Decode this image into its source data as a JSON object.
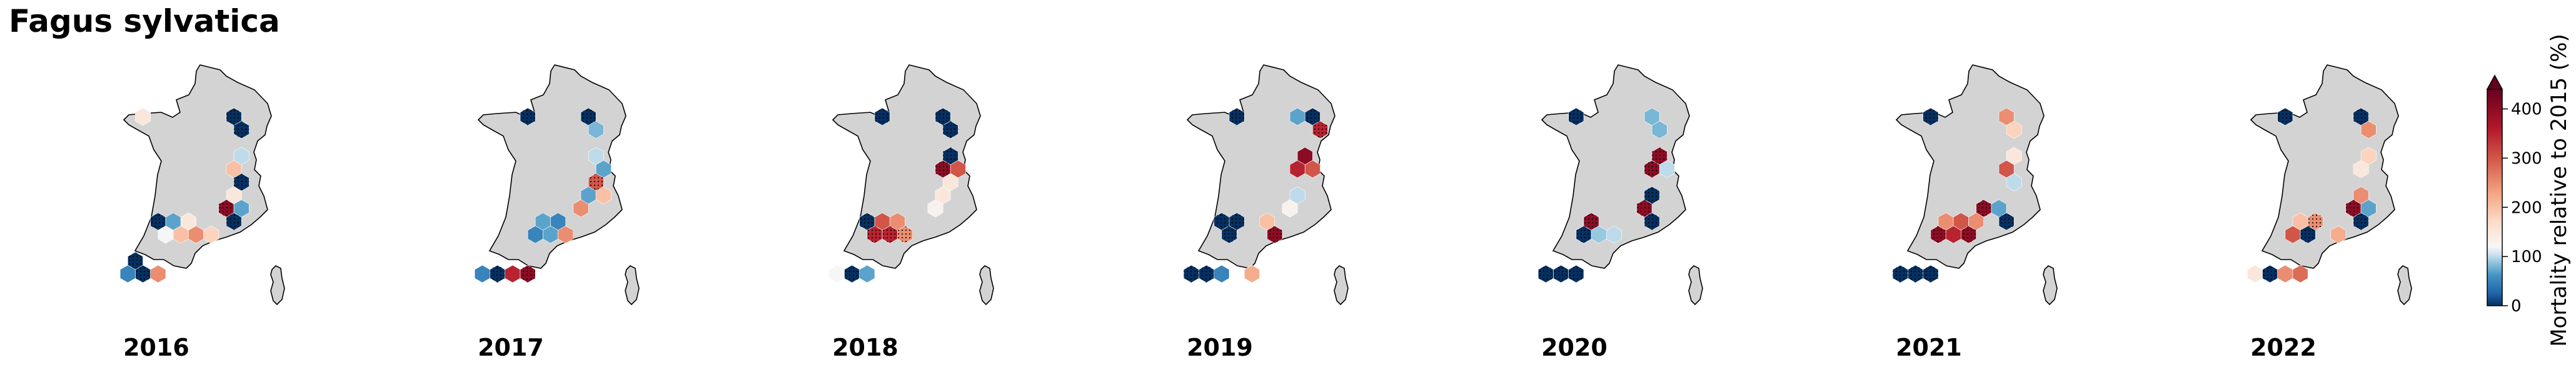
{
  "title": "Fagus sylvatica",
  "chart_data": {
    "type": "heatmap",
    "description_type": "hexbin small multiples",
    "panels": [
      {
        "year": "2016",
        "cells": [
          {
            "c": 2,
            "r": 1,
            "v": 150
          },
          {
            "c": 8,
            "r": 1,
            "v": 0,
            "sig": true
          },
          {
            "c": 9,
            "r": 2,
            "v": 0,
            "sig": true
          },
          {
            "c": 9,
            "r": 4,
            "v": 100
          },
          {
            "c": 8,
            "r": 5,
            "v": 200
          },
          {
            "c": 9,
            "r": 6,
            "v": 0,
            "sig": true
          },
          {
            "c": 8,
            "r": 7,
            "v": 150
          },
          {
            "c": 8,
            "r": 8,
            "v": 400,
            "sig": true
          },
          {
            "c": 9,
            "r": 8,
            "v": 70
          },
          {
            "c": 8,
            "r": 9,
            "v": 0,
            "sig": true
          },
          {
            "c": 3,
            "r": 9,
            "v": 0,
            "sig": true
          },
          {
            "c": 4,
            "r": 9,
            "v": 70
          },
          {
            "c": 5,
            "r": 9,
            "v": 150
          },
          {
            "c": 5,
            "r": 10,
            "v": 200
          },
          {
            "c": 6,
            "r": 10,
            "v": 250
          },
          {
            "c": 7,
            "r": 10,
            "v": 180
          },
          {
            "c": 4,
            "r": 10,
            "v": 120
          },
          {
            "c": 2,
            "r": 12,
            "v": 0,
            "sig": true
          },
          {
            "c": 1,
            "r": 13,
            "v": 50
          },
          {
            "c": 2,
            "r": 13,
            "v": 0,
            "sig": true
          },
          {
            "c": 3,
            "r": 13,
            "v": 250
          }
        ]
      },
      {
        "year": "2017",
        "cells": [
          {
            "c": 4,
            "r": 1,
            "v": 0,
            "sig": true
          },
          {
            "c": 8,
            "r": 1,
            "v": 0,
            "sig": true
          },
          {
            "c": 9,
            "r": 2,
            "v": 80
          },
          {
            "c": 9,
            "r": 4,
            "v": 100
          },
          {
            "c": 9,
            "r": 5,
            "v": 70
          },
          {
            "c": 9,
            "r": 6,
            "v": 300,
            "sig": true
          },
          {
            "c": 8,
            "r": 7,
            "v": 70
          },
          {
            "c": 9,
            "r": 7,
            "v": 200
          },
          {
            "c": 8,
            "r": 8,
            "v": 250
          },
          {
            "c": 5,
            "r": 9,
            "v": 70
          },
          {
            "c": 6,
            "r": 9,
            "v": 50
          },
          {
            "c": 5,
            "r": 10,
            "v": 50
          },
          {
            "c": 6,
            "r": 10,
            "v": 70
          },
          {
            "c": 7,
            "r": 10,
            "v": 250
          },
          {
            "c": 1,
            "r": 13,
            "v": 50
          },
          {
            "c": 2,
            "r": 13,
            "v": 0,
            "sig": true
          },
          {
            "c": 3,
            "r": 13,
            "v": 350
          },
          {
            "c": 4,
            "r": 13,
            "v": 400,
            "sig": true
          }
        ]
      },
      {
        "year": "2018",
        "cells": [
          {
            "c": 4,
            "r": 1,
            "v": 0,
            "sig": true
          },
          {
            "c": 8,
            "r": 1,
            "v": 0,
            "sig": true
          },
          {
            "c": 9,
            "r": 2,
            "v": 0,
            "sig": true
          },
          {
            "c": 9,
            "r": 4,
            "v": 0,
            "sig": true
          },
          {
            "c": 8,
            "r": 5,
            "v": 400,
            "sig": true
          },
          {
            "c": 9,
            "r": 5,
            "v": 300
          },
          {
            "c": 9,
            "r": 6,
            "v": 150
          },
          {
            "c": 8,
            "r": 7,
            "v": 150
          },
          {
            "c": 8,
            "r": 8,
            "v": 130
          },
          {
            "c": 3,
            "r": 9,
            "v": 0,
            "sig": true
          },
          {
            "c": 4,
            "r": 9,
            "v": 300
          },
          {
            "c": 5,
            "r": 9,
            "v": 250
          },
          {
            "c": 4,
            "r": 10,
            "v": 350,
            "sig": true
          },
          {
            "c": 5,
            "r": 10,
            "v": 350,
            "sig": true
          },
          {
            "c": 6,
            "r": 10,
            "v": 250,
            "sig": true
          },
          {
            "c": 1,
            "r": 13,
            "v": 120
          },
          {
            "c": 2,
            "r": 13,
            "v": 0,
            "sig": true
          },
          {
            "c": 3,
            "r": 13,
            "v": 70
          }
        ]
      },
      {
        "year": "2019",
        "cells": [
          {
            "c": 4,
            "r": 1,
            "v": 0,
            "sig": true
          },
          {
            "c": 8,
            "r": 1,
            "v": 70
          },
          {
            "c": 9,
            "r": 1,
            "v": 0,
            "sig": true
          },
          {
            "c": 10,
            "r": 2,
            "v": 350,
            "sig": true
          },
          {
            "c": 9,
            "r": 4,
            "v": 400
          },
          {
            "c": 8,
            "r": 5,
            "v": 350
          },
          {
            "c": 9,
            "r": 5,
            "v": 300
          },
          {
            "c": 8,
            "r": 7,
            "v": 100
          },
          {
            "c": 8,
            "r": 8,
            "v": 130
          },
          {
            "c": 3,
            "r": 9,
            "v": 0,
            "sig": true
          },
          {
            "c": 4,
            "r": 9,
            "v": 0,
            "sig": true
          },
          {
            "c": 6,
            "r": 9,
            "v": 200
          },
          {
            "c": 4,
            "r": 10,
            "v": 0,
            "sig": true
          },
          {
            "c": 7,
            "r": 10,
            "v": 400,
            "sig": true
          },
          {
            "c": 1,
            "r": 13,
            "v": 0,
            "sig": true
          },
          {
            "c": 2,
            "r": 13,
            "v": 0,
            "sig": true
          },
          {
            "c": 3,
            "r": 13,
            "v": 50
          },
          {
            "c": 5,
            "r": 13,
            "v": 220
          }
        ]
      },
      {
        "year": "2020",
        "cells": [
          {
            "c": 3,
            "r": 1,
            "v": 0,
            "sig": true
          },
          {
            "c": 8,
            "r": 1,
            "v": 80
          },
          {
            "c": 9,
            "r": 2,
            "v": 80
          },
          {
            "c": 9,
            "r": 4,
            "v": 400,
            "sig": true
          },
          {
            "c": 8,
            "r": 5,
            "v": 400,
            "sig": true
          },
          {
            "c": 9,
            "r": 5,
            "v": 100
          },
          {
            "c": 8,
            "r": 7,
            "v": 0,
            "sig": true
          },
          {
            "c": 8,
            "r": 8,
            "v": 400,
            "sig": true
          },
          {
            "c": 8,
            "r": 9,
            "v": 0,
            "sig": true
          },
          {
            "c": 4,
            "r": 9,
            "v": 400,
            "sig": true
          },
          {
            "c": 4,
            "r": 10,
            "v": 0,
            "sig": true
          },
          {
            "c": 5,
            "r": 10,
            "v": 90
          },
          {
            "c": 6,
            "r": 10,
            "v": 100
          },
          {
            "c": 1,
            "r": 13,
            "v": 0,
            "sig": true
          },
          {
            "c": 2,
            "r": 13,
            "v": 0,
            "sig": true
          },
          {
            "c": 3,
            "r": 13,
            "v": 0,
            "sig": true
          }
        ]
      },
      {
        "year": "2021",
        "cells": [
          {
            "c": 3,
            "r": 1,
            "v": 0,
            "sig": true
          },
          {
            "c": 8,
            "r": 1,
            "v": 250
          },
          {
            "c": 9,
            "r": 2,
            "v": 180
          },
          {
            "c": 9,
            "r": 4,
            "v": 150
          },
          {
            "c": 8,
            "r": 5,
            "v": 300
          },
          {
            "c": 9,
            "r": 6,
            "v": 100
          },
          {
            "c": 7,
            "r": 8,
            "v": 400,
            "sig": true
          },
          {
            "c": 8,
            "r": 8,
            "v": 70
          },
          {
            "c": 8,
            "r": 9,
            "v": 0,
            "sig": true
          },
          {
            "c": 4,
            "r": 9,
            "v": 250
          },
          {
            "c": 5,
            "r": 9,
            "v": 300
          },
          {
            "c": 6,
            "r": 9,
            "v": 250
          },
          {
            "c": 4,
            "r": 10,
            "v": 400,
            "sig": true
          },
          {
            "c": 5,
            "r": 10,
            "v": 350
          },
          {
            "c": 6,
            "r": 10,
            "v": 400,
            "sig": true
          },
          {
            "c": 1,
            "r": 13,
            "v": 0,
            "sig": true
          },
          {
            "c": 2,
            "r": 13,
            "v": 0,
            "sig": true
          },
          {
            "c": 3,
            "r": 13,
            "v": 0,
            "sig": true
          }
        ]
      },
      {
        "year": "2022",
        "cells": [
          {
            "c": 3,
            "r": 1,
            "v": 0,
            "sig": true
          },
          {
            "c": 8,
            "r": 1,
            "v": 0,
            "sig": true
          },
          {
            "c": 9,
            "r": 2,
            "v": 250
          },
          {
            "c": 9,
            "r": 4,
            "v": 180
          },
          {
            "c": 8,
            "r": 5,
            "v": 150
          },
          {
            "c": 8,
            "r": 7,
            "v": 250
          },
          {
            "c": 8,
            "r": 8,
            "v": 400,
            "sig": true
          },
          {
            "c": 9,
            "r": 8,
            "v": 70
          },
          {
            "c": 8,
            "r": 9,
            "v": 0,
            "sig": true
          },
          {
            "c": 4,
            "r": 9,
            "v": 200
          },
          {
            "c": 5,
            "r": 9,
            "v": 250,
            "sig": true
          },
          {
            "c": 4,
            "r": 10,
            "v": 300
          },
          {
            "c": 5,
            "r": 10,
            "v": 0,
            "sig": true
          },
          {
            "c": 7,
            "r": 10,
            "v": 220
          },
          {
            "c": 1,
            "r": 13,
            "v": 150
          },
          {
            "c": 2,
            "r": 13,
            "v": 0,
            "sig": true
          },
          {
            "c": 3,
            "r": 13,
            "v": 250
          },
          {
            "c": 4,
            "r": 13,
            "v": 280
          }
        ]
      }
    ],
    "colorbar": {
      "label": "Mortality relative to 2015 (%)",
      "ticks": [
        0,
        100,
        200,
        300,
        400
      ],
      "range": [
        0,
        440
      ],
      "center": 100,
      "extend": "max",
      "cmap": "RdBu_r"
    }
  },
  "colors": {
    "land": "#d3d3d3",
    "outline": "#000000",
    "low": "#053061",
    "mid": "#f7f7f7",
    "high": "#67001f"
  }
}
